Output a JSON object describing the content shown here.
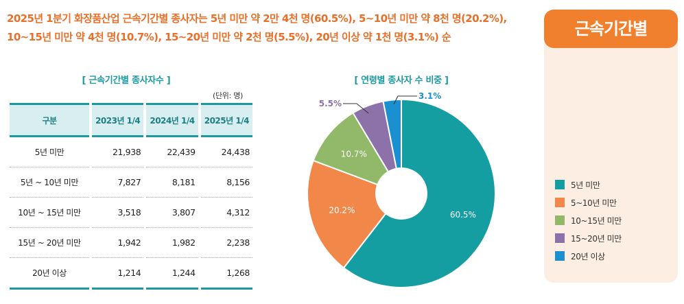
{
  "headline": "2025년 1분기 화장품산업 근속기간별 종사자는 5년 미만 약 2만 4천 명(60.5%), 5~10년 미만 약 8천 명(20.2%), 10~15년 미만 약 4천 명(10.7%), 15~20년 미만 약 2천 명(5.5%), 20년 이상 약 1천 명(3.1%) 순",
  "side_title": "근속기간별",
  "table": {
    "title": "[ 근속기간별 종사자수 ]",
    "unit": "(단위: 명)",
    "headers": [
      "구분",
      "2023년 1/4",
      "2024년 1/4",
      "2025년 1/4"
    ],
    "rows": [
      {
        "category": "5년 미만",
        "values": [
          "21,938",
          "22,439",
          "24,438"
        ]
      },
      {
        "category": "5년 ~ 10년 미만",
        "values": [
          "7,827",
          "8,181",
          "8,156"
        ]
      },
      {
        "category": "10년 ~ 15년 미만",
        "values": [
          "3,518",
          "3,807",
          "4,312"
        ]
      },
      {
        "category": "15년 ~ 20년 미만",
        "values": [
          "1,942",
          "1,982",
          "2,238"
        ]
      },
      {
        "category": "20년 이상",
        "values": [
          "1,214",
          "1,244",
          "1,268"
        ]
      }
    ]
  },
  "chart_data": {
    "type": "pie",
    "title": "[ 연령별 종사자 수 비중 ]",
    "donut": true,
    "legend_position": "right",
    "categories": [
      "5년 미만",
      "5~10년 미만",
      "10~15년 미만",
      "15~20년 미만",
      "20년 이상"
    ],
    "values": [
      60.5,
      20.2,
      10.7,
      5.5,
      3.1
    ],
    "data_labels": [
      "60.5%",
      "20.2%",
      "10.7%",
      "5.5%",
      "3.1%"
    ],
    "colors": [
      "#159ea1",
      "#f2874a",
      "#92b86a",
      "#8c72a8",
      "#1b8fcf"
    ]
  }
}
